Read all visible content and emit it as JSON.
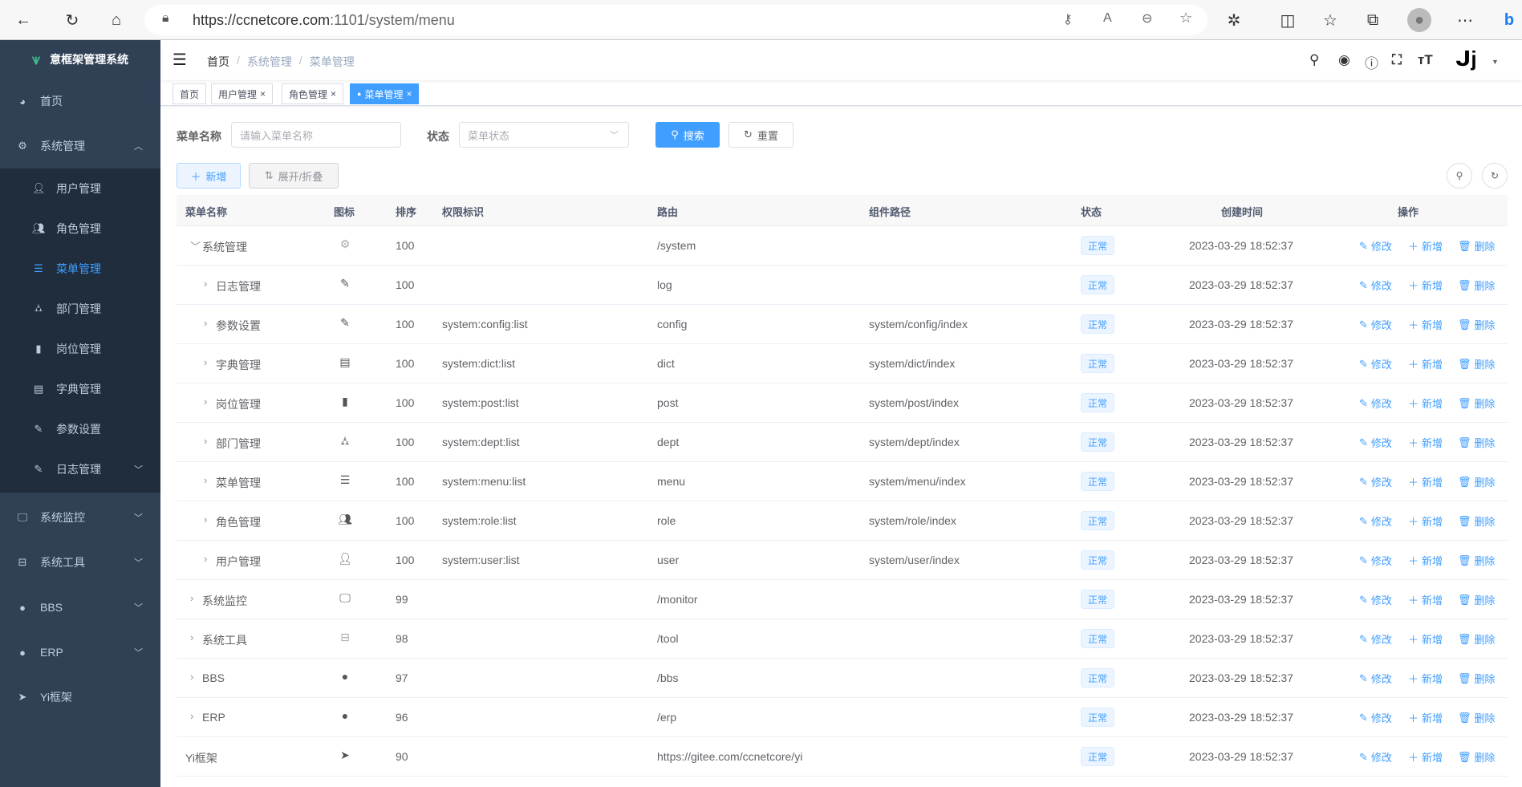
{
  "browser": {
    "url_host": "https://ccnetcore.com",
    "url_path": ":1101/system/menu"
  },
  "sidebar": {
    "logo_text": "意框架管理系统",
    "items": [
      {
        "label": "首页",
        "icon": "dashboard-icon"
      },
      {
        "label": "系统管理",
        "icon": "gear-icon",
        "expanded": true
      },
      {
        "label": "系统监控",
        "icon": "monitor-icon"
      },
      {
        "label": "系统工具",
        "icon": "toolbox-icon"
      },
      {
        "label": "BBS",
        "icon": "globe-icon"
      },
      {
        "label": "ERP",
        "icon": "globe-icon"
      },
      {
        "label": "Yi框架",
        "icon": "paper-plane-icon"
      }
    ],
    "sub_items": [
      {
        "label": "用户管理",
        "icon": "user-icon"
      },
      {
        "label": "角色管理",
        "icon": "users-icon"
      },
      {
        "label": "菜单管理",
        "icon": "tree-table-icon",
        "active": true
      },
      {
        "label": "部门管理",
        "icon": "tree-icon"
      },
      {
        "label": "岗位管理",
        "icon": "post-icon"
      },
      {
        "label": "字典管理",
        "icon": "dict-icon"
      },
      {
        "label": "参数设置",
        "icon": "edit-icon"
      },
      {
        "label": "日志管理",
        "icon": "log-icon"
      }
    ]
  },
  "header": {
    "breadcrumb": [
      "首页",
      "系统管理",
      "菜单管理"
    ],
    "separator": "/"
  },
  "tabs": [
    {
      "label": "首页"
    },
    {
      "label": "用户管理"
    },
    {
      "label": "角色管理"
    },
    {
      "label": "菜单管理",
      "active": true
    }
  ],
  "form": {
    "name_label": "菜单名称",
    "name_placeholder": "请输入菜单名称",
    "status_label": "状态",
    "status_placeholder": "菜单状态",
    "search": "搜索",
    "reset": "重置"
  },
  "toolbar": {
    "add": "新增",
    "toggle": "展开/折叠"
  },
  "table": {
    "headers": [
      "菜单名称",
      "图标",
      "排序",
      "权限标识",
      "路由",
      "组件路径",
      "状态",
      "创建时间",
      "操作"
    ],
    "actions": {
      "edit": "修改",
      "add": "新增",
      "delete": "删除"
    },
    "rows": [
      {
        "name": "系统管理",
        "level": 0,
        "expand": "open",
        "icon": "gear-icon",
        "sort": "100",
        "perm": "",
        "route": "/system",
        "component": "",
        "status": "正常",
        "time": "2023-03-29 18:52:37"
      },
      {
        "name": "日志管理",
        "level": 1,
        "expand": "closed",
        "icon": "log-icon",
        "sort": "100",
        "perm": "",
        "route": "log",
        "component": "",
        "status": "正常",
        "time": "2023-03-29 18:52:37"
      },
      {
        "name": "参数设置",
        "level": 1,
        "expand": "closed",
        "icon": "edit-icon",
        "sort": "100",
        "perm": "system:config:list",
        "route": "config",
        "component": "system/config/index",
        "status": "正常",
        "time": "2023-03-29 18:52:37"
      },
      {
        "name": "字典管理",
        "level": 1,
        "expand": "closed",
        "icon": "dict-icon",
        "sort": "100",
        "perm": "system:dict:list",
        "route": "dict",
        "component": "system/dict/index",
        "status": "正常",
        "time": "2023-03-29 18:52:37"
      },
      {
        "name": "岗位管理",
        "level": 1,
        "expand": "closed",
        "icon": "post-icon",
        "sort": "100",
        "perm": "system:post:list",
        "route": "post",
        "component": "system/post/index",
        "status": "正常",
        "time": "2023-03-29 18:52:37"
      },
      {
        "name": "部门管理",
        "level": 1,
        "expand": "closed",
        "icon": "tree-icon",
        "sort": "100",
        "perm": "system:dept:list",
        "route": "dept",
        "component": "system/dept/index",
        "status": "正常",
        "time": "2023-03-29 18:52:37"
      },
      {
        "name": "菜单管理",
        "level": 1,
        "expand": "closed",
        "icon": "tree-table-icon",
        "sort": "100",
        "perm": "system:menu:list",
        "route": "menu",
        "component": "system/menu/index",
        "status": "正常",
        "time": "2023-03-29 18:52:37"
      },
      {
        "name": "角色管理",
        "level": 1,
        "expand": "closed",
        "icon": "users-icon",
        "sort": "100",
        "perm": "system:role:list",
        "route": "role",
        "component": "system/role/index",
        "status": "正常",
        "time": "2023-03-29 18:52:37"
      },
      {
        "name": "用户管理",
        "level": 1,
        "expand": "closed",
        "icon": "user-icon",
        "sort": "100",
        "perm": "system:user:list",
        "route": "user",
        "component": "system/user/index",
        "status": "正常",
        "time": "2023-03-29 18:52:37"
      },
      {
        "name": "系统监控",
        "level": 0,
        "expand": "closed",
        "icon": "monitor-icon",
        "sort": "99",
        "perm": "",
        "route": "/monitor",
        "component": "",
        "status": "正常",
        "time": "2023-03-29 18:52:37"
      },
      {
        "name": "系统工具",
        "level": 0,
        "expand": "closed",
        "icon": "toolbox-icon",
        "sort": "98",
        "perm": "",
        "route": "/tool",
        "component": "",
        "status": "正常",
        "time": "2023-03-29 18:52:37"
      },
      {
        "name": "BBS",
        "level": 0,
        "expand": "closed",
        "icon": "globe-icon",
        "sort": "97",
        "perm": "",
        "route": "/bbs",
        "component": "",
        "status": "正常",
        "time": "2023-03-29 18:52:37"
      },
      {
        "name": "ERP",
        "level": 0,
        "expand": "closed",
        "icon": "globe-icon",
        "sort": "96",
        "perm": "",
        "route": "/erp",
        "component": "",
        "status": "正常",
        "time": "2023-03-29 18:52:37"
      },
      {
        "name": "Yi框架",
        "level": 0,
        "expand": "none",
        "icon": "paper-plane-icon",
        "sort": "90",
        "perm": "",
        "route": "https://gitee.com/ccnetcore/yi",
        "component": "",
        "status": "正常",
        "time": "2023-03-29 18:52:37"
      }
    ]
  },
  "colors": {
    "primary": "#409eff",
    "sidebar": "#304156",
    "submenu": "#1f2d3d"
  }
}
